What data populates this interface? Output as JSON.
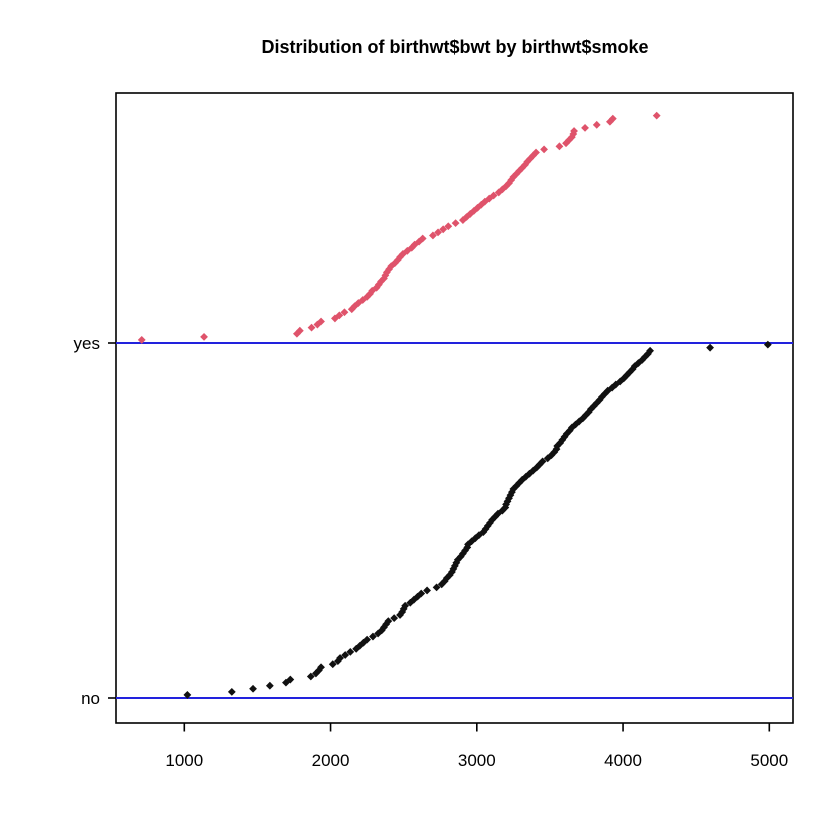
{
  "window": {
    "background": "#ffffff"
  },
  "chart_data": {
    "type": "scatter",
    "subtype": "grouped-cumulative-strip",
    "title": "Distribution of birthwt$bwt by birthwt$smoke",
    "xlabel": "",
    "ylabel": "",
    "grid": false,
    "legend_position": "none",
    "x_axis": {
      "ticks": [
        1000,
        2000,
        3000,
        4000,
        5000
      ],
      "range": [
        533,
        5162
      ]
    },
    "y_axis": {
      "categories": [
        "no",
        "yes"
      ]
    },
    "styles": {
      "box_color": "#000000",
      "baseline_color": "#2222DD",
      "point_shape": "diamond",
      "yes_color": "#DF536B",
      "no_color": "#111111"
    },
    "series": [
      {
        "name": "yes",
        "label": "yes",
        "color": "#DF536B",
        "n": 74,
        "values": [
          709,
          1135,
          1770,
          1790,
          1870,
          1910,
          1935,
          2030,
          2060,
          2095,
          2145,
          2165,
          2190,
          2220,
          2250,
          2270,
          2285,
          2315,
          2330,
          2345,
          2365,
          2375,
          2385,
          2400,
          2415,
          2440,
          2460,
          2475,
          2495,
          2525,
          2555,
          2575,
          2605,
          2630,
          2700,
          2735,
          2770,
          2805,
          2855,
          2905,
          2930,
          2955,
          2980,
          3005,
          3030,
          3055,
          3085,
          3115,
          3150,
          3175,
          3200,
          3220,
          3235,
          3250,
          3270,
          3290,
          3310,
          3330,
          3345,
          3365,
          3385,
          3405,
          3460,
          3565,
          3610,
          3630,
          3650,
          3660,
          3665,
          3740,
          3820,
          3910,
          3930,
          4230
        ]
      },
      {
        "name": "no",
        "label": "no",
        "color": "#111111",
        "n": 115,
        "values": [
          1021,
          1325,
          1470,
          1585,
          1695,
          1725,
          1865,
          1900,
          1920,
          1935,
          2015,
          2050,
          2065,
          2100,
          2135,
          2175,
          2200,
          2225,
          2250,
          2290,
          2325,
          2350,
          2365,
          2380,
          2395,
          2435,
          2475,
          2490,
          2500,
          2510,
          2545,
          2570,
          2595,
          2620,
          2660,
          2725,
          2760,
          2780,
          2795,
          2815,
          2830,
          2840,
          2850,
          2860,
          2870,
          2890,
          2905,
          2920,
          2935,
          2940,
          2965,
          2990,
          3015,
          3045,
          3060,
          3075,
          3090,
          3105,
          3125,
          3145,
          3175,
          3195,
          3200,
          3210,
          3220,
          3230,
          3240,
          3250,
          3270,
          3290,
          3310,
          3335,
          3360,
          3385,
          3410,
          3430,
          3450,
          3485,
          3510,
          3530,
          3545,
          3550,
          3570,
          3585,
          3600,
          3615,
          3635,
          3650,
          3675,
          3700,
          3725,
          3745,
          3765,
          3780,
          3800,
          3820,
          3840,
          3855,
          3875,
          3895,
          3925,
          3950,
          3980,
          4005,
          4025,
          4045,
          4065,
          4080,
          4105,
          4130,
          4150,
          4170,
          4185,
          4595,
          4990
        ]
      }
    ]
  }
}
